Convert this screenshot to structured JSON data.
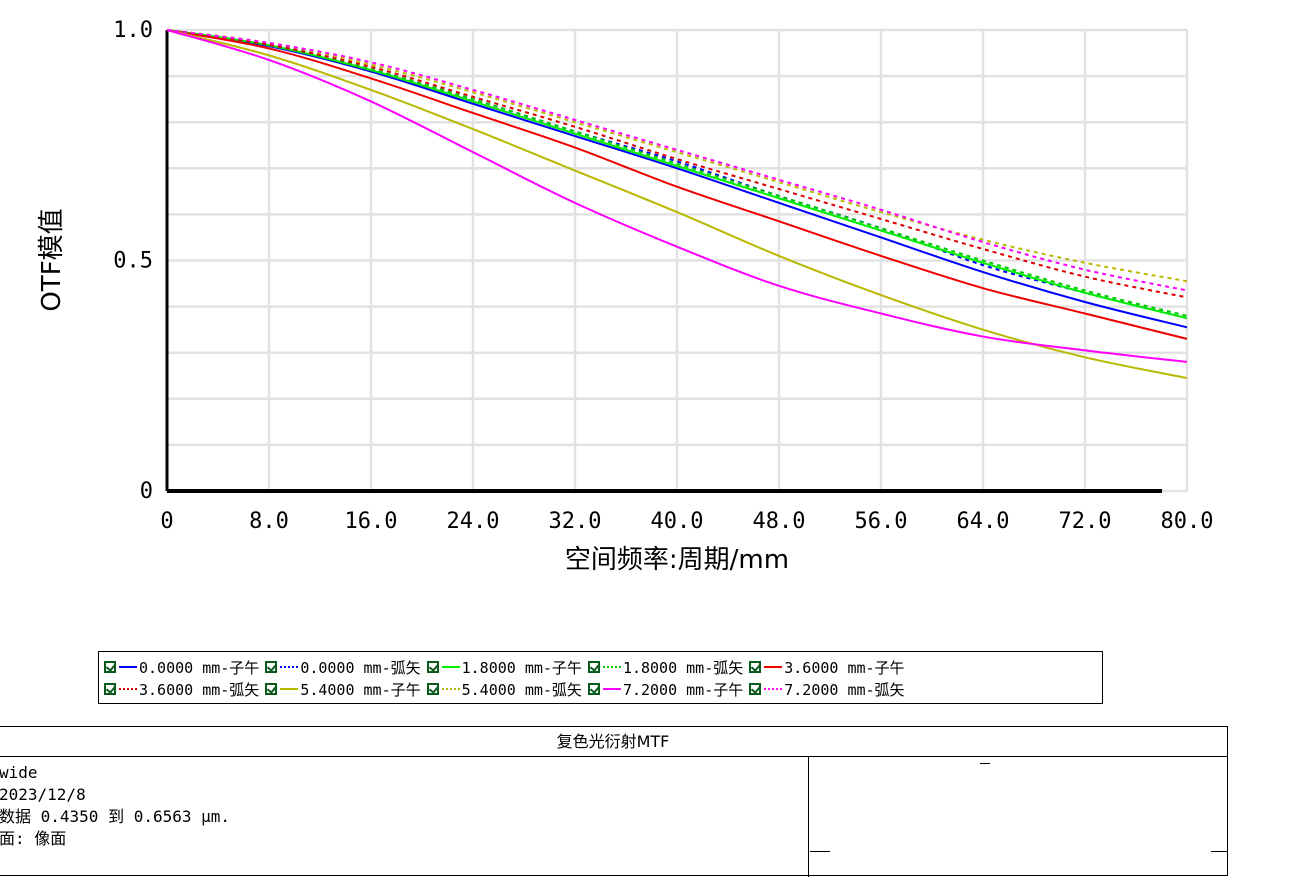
{
  "chart_data": {
    "type": "line",
    "xlabel": "空间频率:周期/mm",
    "ylabel": "OTF模值",
    "xlim": [
      0,
      80
    ],
    "ylim": [
      0,
      1
    ],
    "x_ticks": [
      "0",
      "8.0",
      "16.0",
      "24.0",
      "32.0",
      "40.0",
      "48.0",
      "56.0",
      "64.0",
      "72.0",
      "80.0"
    ],
    "y_ticks": [
      "0",
      "0.5",
      "1.0"
    ],
    "grid": true,
    "x": [
      0,
      8,
      16,
      24,
      32,
      40,
      48,
      56,
      64,
      72,
      80
    ],
    "series": [
      {
        "name": "0.0000 mm-子午",
        "color": "#0000ff",
        "style": "solid",
        "values": [
          1.0,
          0.965,
          0.91,
          0.84,
          0.77,
          0.7,
          0.625,
          0.55,
          0.475,
          0.41,
          0.355
        ]
      },
      {
        "name": "0.0000 mm-弧矢",
        "color": "#0000ff",
        "style": "dotted",
        "values": [
          1.0,
          0.97,
          0.915,
          0.85,
          0.78,
          0.715,
          0.64,
          0.57,
          0.49,
          0.43,
          0.375
        ]
      },
      {
        "name": "1.8000 mm-子午",
        "color": "#00ee00",
        "style": "solid",
        "values": [
          1.0,
          0.967,
          0.913,
          0.845,
          0.775,
          0.705,
          0.635,
          0.565,
          0.495,
          0.43,
          0.375
        ]
      },
      {
        "name": "1.8000 mm-弧矢",
        "color": "#00cc00",
        "style": "dotted",
        "values": [
          1.0,
          0.968,
          0.915,
          0.85,
          0.78,
          0.71,
          0.64,
          0.57,
          0.5,
          0.435,
          0.38
        ]
      },
      {
        "name": "3.6000 mm-子午",
        "color": "#ee0000",
        "style": "solid",
        "values": [
          1.0,
          0.96,
          0.895,
          0.82,
          0.745,
          0.66,
          0.585,
          0.51,
          0.44,
          0.385,
          0.33
        ]
      },
      {
        "name": "3.6000 mm-弧矢",
        "color": "#dd0000",
        "style": "dotted",
        "values": [
          1.0,
          0.968,
          0.92,
          0.855,
          0.79,
          0.72,
          0.655,
          0.59,
          0.525,
          0.465,
          0.42
        ]
      },
      {
        "name": "5.4000 mm-子午",
        "color": "#b8b800",
        "style": "solid",
        "values": [
          1.0,
          0.945,
          0.87,
          0.785,
          0.695,
          0.605,
          0.51,
          0.425,
          0.35,
          0.29,
          0.245
        ]
      },
      {
        "name": "5.4000 mm-弧矢",
        "color": "#b8b800",
        "style": "dotted",
        "values": [
          1.0,
          0.972,
          0.925,
          0.865,
          0.8,
          0.735,
          0.67,
          0.605,
          0.545,
          0.495,
          0.455
        ]
      },
      {
        "name": "7.2000 mm-子午",
        "color": "#ff00ff",
        "style": "solid",
        "values": [
          1.0,
          0.935,
          0.845,
          0.735,
          0.625,
          0.53,
          0.445,
          0.385,
          0.335,
          0.305,
          0.28
        ]
      },
      {
        "name": "7.2000 mm-弧矢",
        "color": "#ff00ff",
        "style": "dotted",
        "values": [
          1.0,
          0.972,
          0.93,
          0.87,
          0.805,
          0.74,
          0.675,
          0.61,
          0.54,
          0.48,
          0.435
        ]
      }
    ]
  },
  "info": {
    "title": "复色光衍射MTF",
    "lines": [
      "wide",
      "2023/12/8",
      "数据 0.4350 到 0.6563 µm.",
      "面: 像面"
    ]
  }
}
